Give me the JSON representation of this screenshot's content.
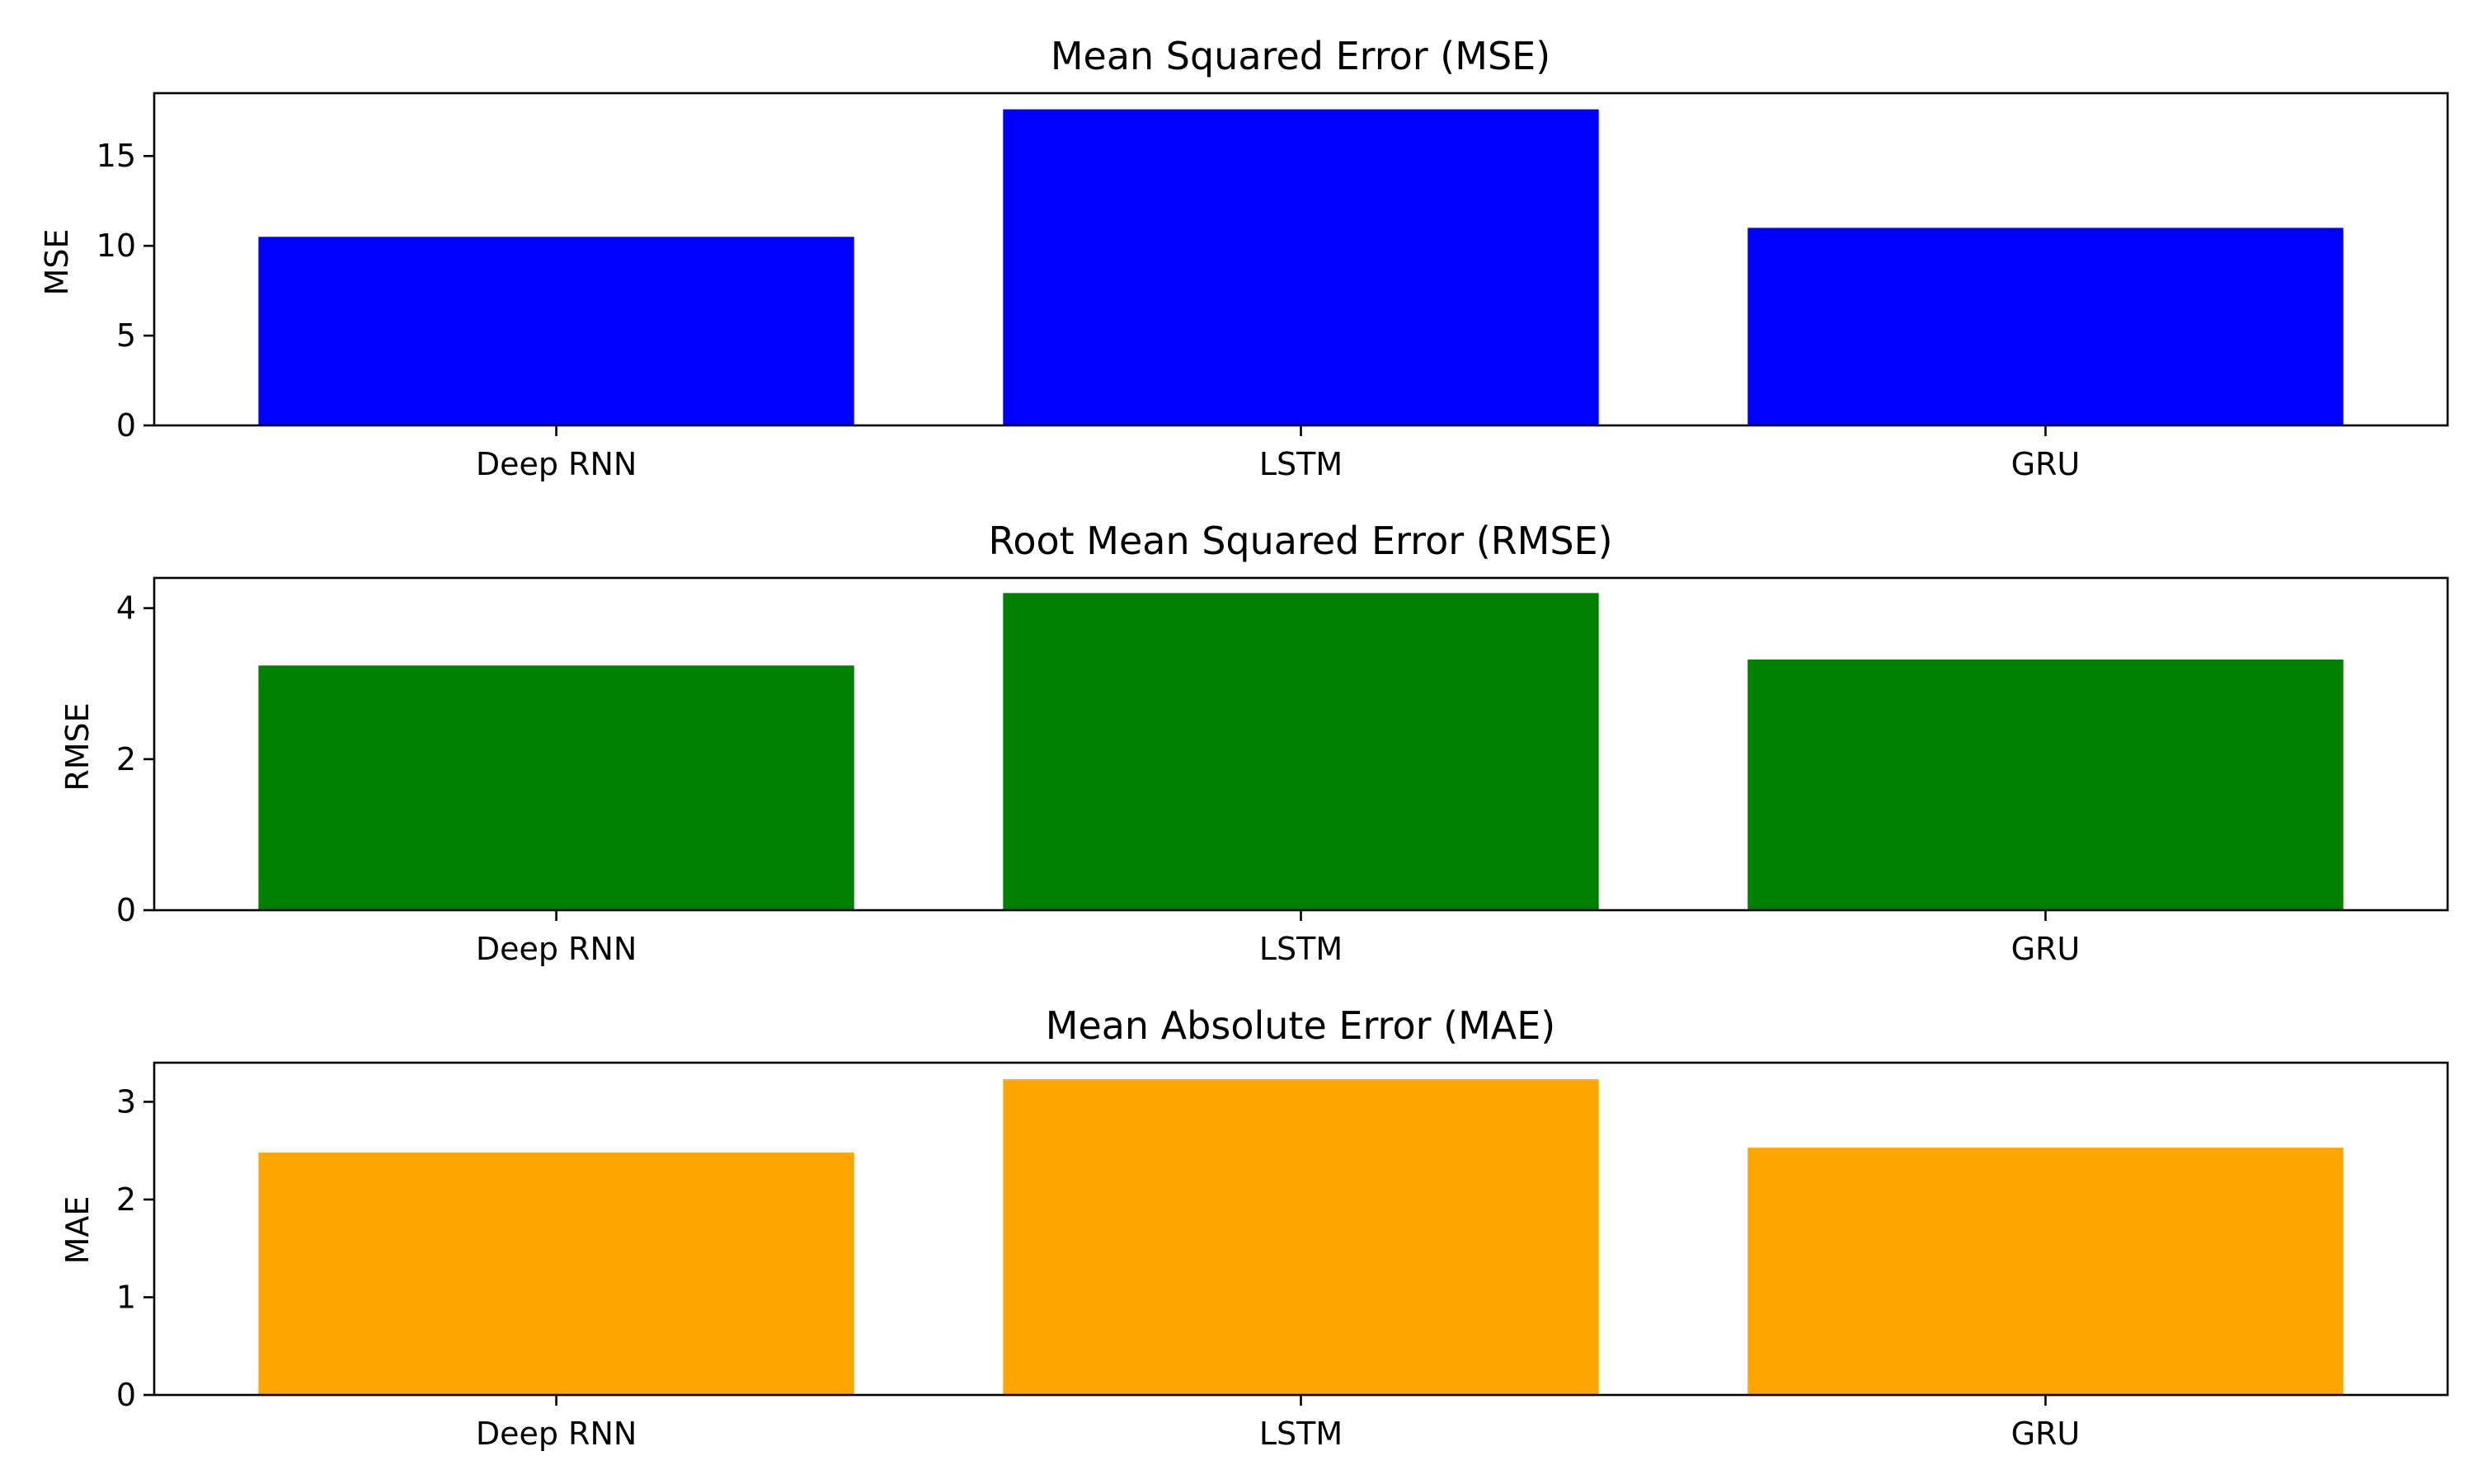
{
  "chart_data": [
    {
      "type": "bar",
      "title": "Mean Squared Error (MSE)",
      "xlabel": "",
      "ylabel": "MSE",
      "categories": [
        "Deep RNN",
        "LSTM",
        "GRU"
      ],
      "values": [
        10.5,
        17.6,
        11.0
      ],
      "ylim": [
        0,
        18.5
      ],
      "yticks": [
        0,
        5,
        10,
        15
      ],
      "ytick_labels": [
        "0",
        "5",
        "10",
        "15"
      ],
      "color": "#0000ff",
      "grid": false
    },
    {
      "type": "bar",
      "title": "Root Mean Squared Error (RMSE)",
      "xlabel": "",
      "ylabel": "RMSE",
      "categories": [
        "Deep RNN",
        "LSTM",
        "GRU"
      ],
      "values": [
        3.24,
        4.2,
        3.32
      ],
      "ylim": [
        0,
        4.4
      ],
      "yticks": [
        0,
        2,
        4
      ],
      "ytick_labels": [
        "0",
        "2",
        "4"
      ],
      "color": "#008000",
      "grid": false
    },
    {
      "type": "bar",
      "title": "Mean Absolute Error (MAE)",
      "xlabel": "",
      "ylabel": "MAE",
      "categories": [
        "Deep RNN",
        "LSTM",
        "GRU"
      ],
      "values": [
        2.48,
        3.23,
        2.53
      ],
      "ylim": [
        0,
        3.4
      ],
      "yticks": [
        0,
        1,
        2,
        3
      ],
      "ytick_labels": [
        "0",
        "1",
        "2",
        "3"
      ],
      "color": "#ffa500",
      "grid": false
    }
  ]
}
